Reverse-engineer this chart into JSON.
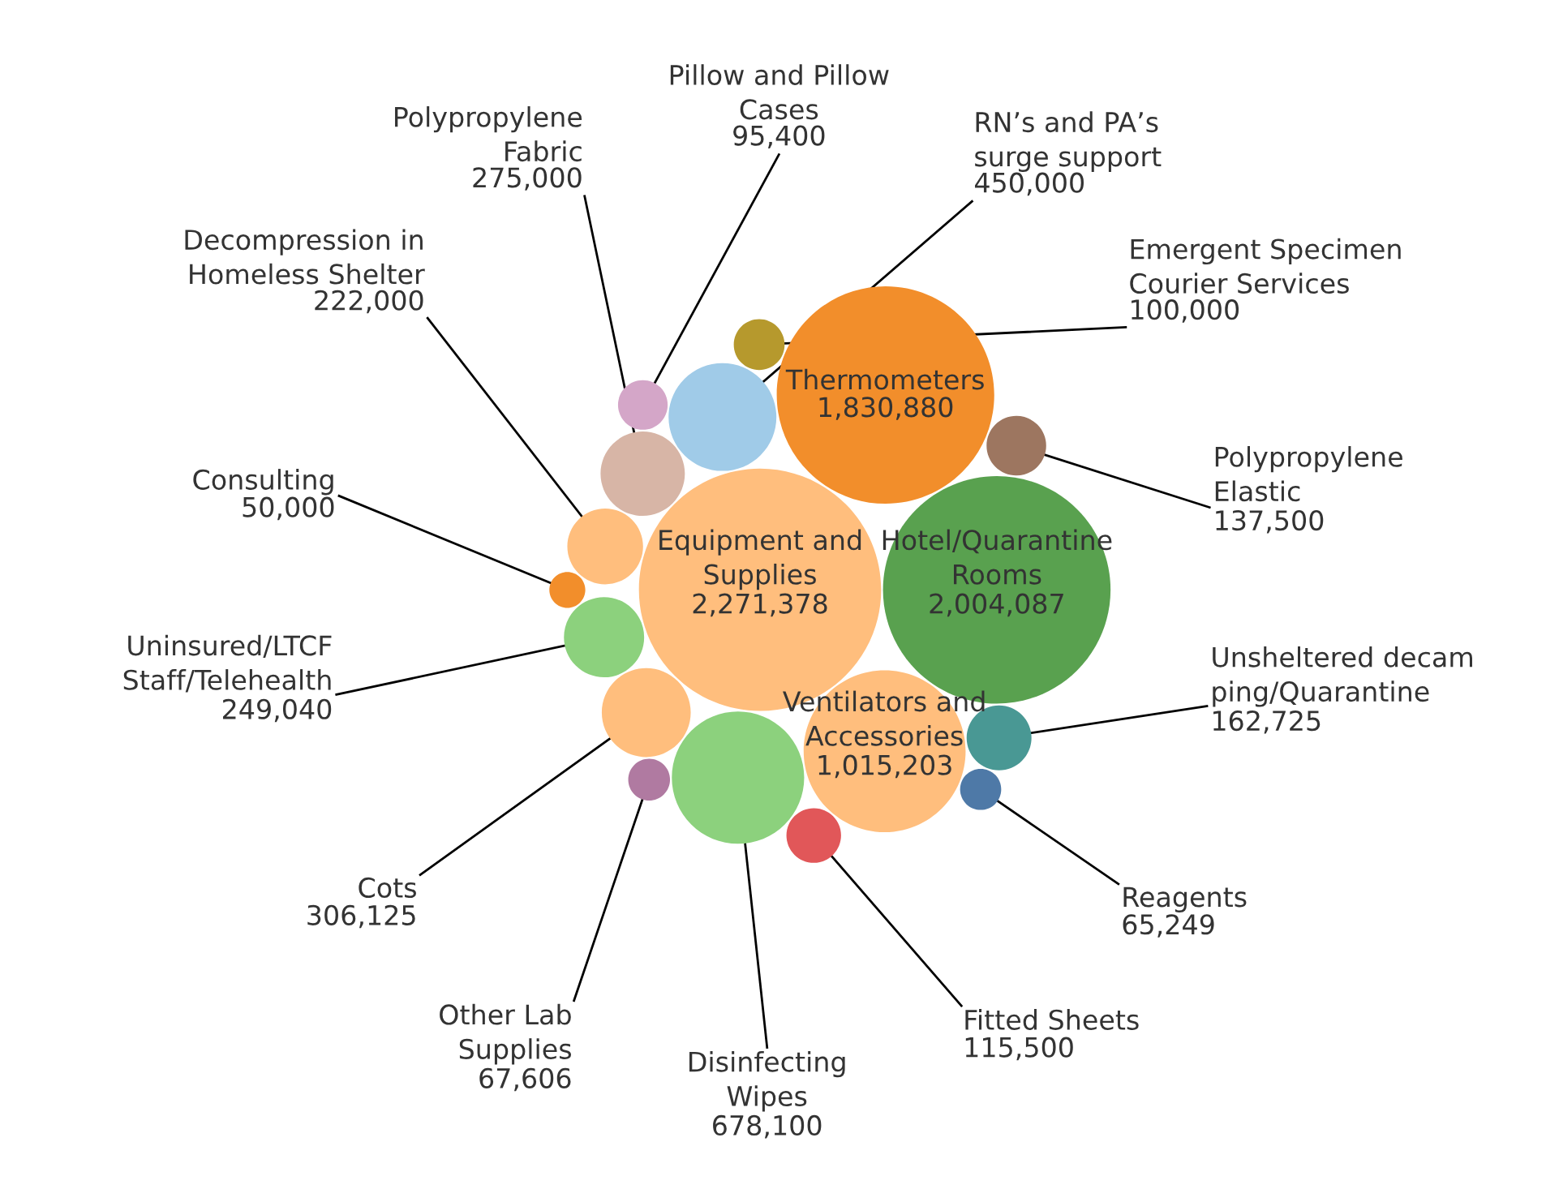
{
  "chart_data": {
    "type": "other",
    "value_labels": [
      "2,271,378",
      "2,004,087",
      "1,830,880",
      "1,015,203",
      "678,100",
      "450,000",
      "306,125",
      "275,000",
      "249,040",
      "222,000",
      "162,725",
      "137,500",
      "115,500",
      "100,000",
      "95,400",
      "67,606",
      "65,249",
      "50,000"
    ],
    "categories": [
      "Equipment and\nSupplies",
      "Hotel/Quarantine\nRooms",
      "Thermometers",
      "Ventilators and\nAccessories",
      "Disinfecting\nWipes",
      "RN’s and PA’s\nsurge support",
      "Cots",
      "Polypropylene\nFabric",
      "Uninsured/LTCF\nStaff/Telehealth",
      "Decompression in\nHomeless Shelter",
      "Unsheltered decam\nping/Quarantine",
      "Polypropylene\nElastic",
      "Fitted Sheets",
      "Emergent Specimen\nCourier Services",
      "Pillow and Pillow\nCases",
      "Other Lab\nSupplies",
      "Reagents",
      "Consulting"
    ],
    "values": [
      2271378,
      2004087,
      1830880,
      1015203,
      678100,
      450000,
      306125,
      275000,
      249040,
      222000,
      162725,
      137500,
      115500,
      100000,
      95400,
      67606,
      65249,
      50000
    ],
    "colors": [
      "#ffbe7d",
      "#59a14f",
      "#f28e2b",
      "#ffbe7d",
      "#8cd17d",
      "#a0cbe8",
      "#ffbe7d",
      "#d7b5a6",
      "#8cd17d",
      "#ffbe7d",
      "#499894",
      "#9d7660",
      "#e15759",
      "#b6992d",
      "#d4a6c8",
      "#b07aa1",
      "#4e79a7",
      "#f28e2b"
    ]
  }
}
